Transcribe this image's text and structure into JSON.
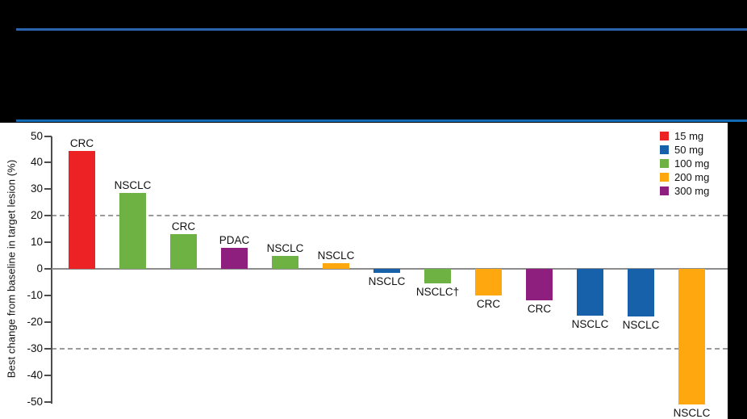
{
  "page": {
    "background_color": "#000000",
    "top_rule_color": "#2A63AE",
    "header_rule_color": "#1269B4"
  },
  "chart_data": {
    "type": "bar",
    "variant": "waterfall",
    "title": "",
    "ylabel": "Best change from baseline in target lesion (%)",
    "ylim": [
      -50,
      50
    ],
    "ytick_interval": 10,
    "yticks": [
      50,
      40,
      30,
      20,
      10,
      0,
      -10,
      -20,
      -30,
      -40,
      -50
    ],
    "reference_lines": [
      20,
      -30
    ],
    "grid": "dashed reference lines only",
    "legend_position": "top-right",
    "plot_background": "#ffffff",
    "doses": [
      {
        "label": "15 mg",
        "color": "#ED2224"
      },
      {
        "label": "50 mg",
        "color": "#1661A9"
      },
      {
        "label": "100 mg",
        "color": "#6FB244"
      },
      {
        "label": "200 mg",
        "color": "#FFA70F"
      },
      {
        "label": "300 mg",
        "color": "#8E1F7F"
      }
    ],
    "bars": [
      {
        "label": "CRC",
        "dose": "15 mg",
        "value": 44.5
      },
      {
        "label": "NSCLC",
        "dose": "100 mg",
        "value": 28.5
      },
      {
        "label": "CRC",
        "dose": "100 mg",
        "value": 13
      },
      {
        "label": "PDAC",
        "dose": "300 mg",
        "value": 8
      },
      {
        "label": "NSCLC",
        "dose": "100 mg",
        "value": 5
      },
      {
        "label": "NSCLC",
        "dose": "200 mg",
        "value": 2
      },
      {
        "label": "NSCLC",
        "dose": "50 mg",
        "value": -1.5
      },
      {
        "label": "NSCLC†",
        "dose": "100 mg",
        "value": -5.5
      },
      {
        "label": "CRC",
        "dose": "200 mg",
        "value": -10
      },
      {
        "label": "CRC",
        "dose": "300 mg",
        "value": -12
      },
      {
        "label": "NSCLC",
        "dose": "50 mg",
        "value": -17.5
      },
      {
        "label": "NSCLC",
        "dose": "50 mg",
        "value": -18
      },
      {
        "label": "NSCLC",
        "dose": "200 mg",
        "value": -51
      }
    ]
  }
}
